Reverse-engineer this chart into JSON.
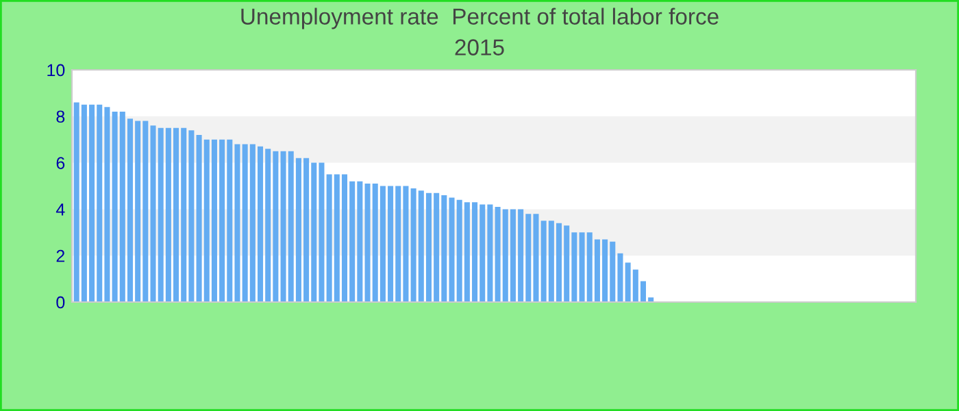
{
  "chart_data": {
    "type": "bar",
    "title": "Unemployment rate  Percent of total labor force",
    "subtitle": "2015",
    "categories": [
      null,
      null,
      null,
      null,
      null,
      null,
      null,
      null,
      null,
      null,
      null,
      null,
      null,
      null,
      null,
      null,
      null,
      null,
      null,
      null,
      null,
      null,
      null,
      null,
      null,
      null,
      null,
      null,
      null,
      null,
      null,
      null,
      null,
      null,
      null,
      null,
      null,
      null,
      null,
      null,
      null,
      null,
      null,
      null,
      null,
      null,
      null,
      null,
      null,
      null,
      null,
      null,
      null,
      null,
      null,
      null,
      null,
      null,
      null,
      null,
      null,
      null,
      null,
      null,
      null,
      null,
      null,
      null,
      null,
      null,
      null,
      null,
      null,
      null,
      null,
      null,
      null,
      null,
      null,
      null,
      null,
      null,
      null,
      null,
      null,
      null,
      null,
      null,
      null,
      null,
      null,
      null,
      null,
      null,
      null,
      null,
      null,
      null,
      null,
      null,
      null,
      null,
      null,
      null,
      null,
      null,
      null,
      null,
      null,
      null
    ],
    "values": [
      8.6,
      8.5,
      8.5,
      8.5,
      8.4,
      8.2,
      8.2,
      7.9,
      7.8,
      7.8,
      7.6,
      7.5,
      7.5,
      7.5,
      7.5,
      7.4,
      7.2,
      7.0,
      7.0,
      7.0,
      7.0,
      6.8,
      6.8,
      6.8,
      6.7,
      6.6,
      6.5,
      6.5,
      6.5,
      6.2,
      6.2,
      6.0,
      6.0,
      5.5,
      5.5,
      5.5,
      5.2,
      5.2,
      5.1,
      5.1,
      5.0,
      5.0,
      5.0,
      5.0,
      4.9,
      4.8,
      4.7,
      4.7,
      4.6,
      4.5,
      4.4,
      4.3,
      4.3,
      4.2,
      4.2,
      4.1,
      4.0,
      4.0,
      4.0,
      3.8,
      3.8,
      3.5,
      3.5,
      3.4,
      3.3,
      3.0,
      3.0,
      3.0,
      2.7,
      2.7,
      2.6,
      2.1,
      1.7,
      1.4,
      0.9,
      0.2,
      null,
      null,
      null,
      null,
      null,
      null,
      null,
      null,
      null,
      null,
      null,
      null,
      null,
      null,
      null,
      null,
      null,
      null,
      null,
      null,
      null,
      null,
      null,
      null,
      null,
      null,
      null,
      null,
      null,
      null,
      null,
      null,
      null,
      null
    ],
    "color": "#64acf2",
    "ylim": [
      0,
      10
    ],
    "yticks": [
      0,
      2,
      4,
      6,
      8,
      10
    ],
    "grid": false,
    "bands": [
      {
        "axis": "y",
        "from": 2,
        "to": 4,
        "color": "#f2f2f2"
      },
      {
        "axis": "y",
        "from": 6,
        "to": 8,
        "color": "#f2f2f2"
      }
    ]
  }
}
